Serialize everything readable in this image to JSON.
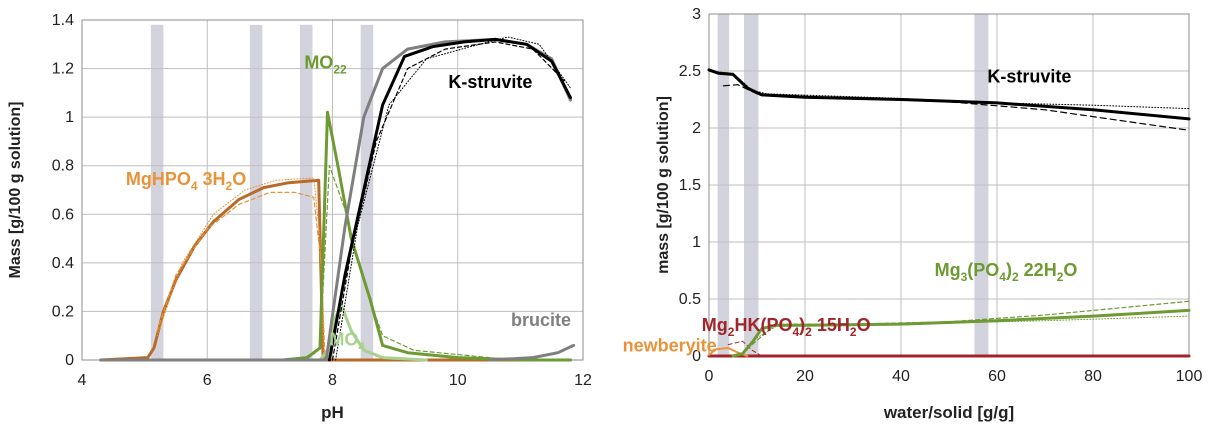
{
  "colors": {
    "black": "#000000",
    "gray": "#7f7f7f",
    "green": "#6e9a34",
    "lightgreen": "#a9d18e",
    "brown": "#b76a29",
    "orange": "#e8933a",
    "darkred": "#a0252a",
    "band": "#d3d3dd",
    "grid": "#bfbfbf"
  },
  "chart_data": [
    {
      "type": "line",
      "xlabel": "pH",
      "ylabel": "Mass [g/100 g solution]",
      "xlim": [
        4,
        12
      ],
      "ylim": [
        0,
        1.4
      ],
      "xticks": [
        "4",
        "6",
        "8",
        "10",
        "12"
      ],
      "yticks": [
        "0",
        "0.2",
        "0.4",
        "0.6",
        "0.8",
        "1",
        "1.2",
        "1.4"
      ],
      "grid": true,
      "bands": [
        {
          "x0": 5.1,
          "x1": 5.3,
          "ytop": 1.38
        },
        {
          "x0": 6.68,
          "x1": 6.88,
          "ytop": 1.38
        },
        {
          "x0": 7.48,
          "x1": 7.68,
          "ytop": 1.38
        },
        {
          "x0": 8.45,
          "x1": 8.65,
          "ytop": 1.38
        }
      ],
      "labels": [
        {
          "text": "MgHPO4 3H2O",
          "color": "orange",
          "x": 4.7,
          "y": 0.72
        },
        {
          "text": "MO22",
          "color": "green",
          "x": 7.55,
          "y": 1.2
        },
        {
          "text": "K-struvite",
          "color": "black",
          "x": 9.85,
          "y": 1.12
        },
        {
          "text": "brucite",
          "color": "gray",
          "x": 10.85,
          "y": 0.14
        },
        {
          "text": "MO4",
          "color": "lightgreen",
          "x": 7.95,
          "y": 0.06
        }
      ],
      "series": [
        {
          "color": "brown",
          "width": 3,
          "values": [
            [
              4.3,
              0
            ],
            [
              5.05,
              0.01
            ],
            [
              5.15,
              0.05
            ],
            [
              5.3,
              0.2
            ],
            [
              5.5,
              0.33
            ],
            [
              5.8,
              0.47
            ],
            [
              6.1,
              0.57
            ],
            [
              6.5,
              0.66
            ],
            [
              6.9,
              0.71
            ],
            [
              7.3,
              0.73
            ],
            [
              7.78,
              0.74
            ],
            [
              7.85,
              0.0
            ],
            [
              8.2,
              0
            ],
            [
              11.8,
              0
            ]
          ]
        },
        {
          "color": "orange",
          "width": 1.2,
          "dash": "4,3",
          "values": [
            [
              5.2,
              0.12
            ],
            [
              5.5,
              0.35
            ],
            [
              6,
              0.54
            ],
            [
              6.5,
              0.64
            ],
            [
              7,
              0.69
            ],
            [
              7.4,
              0.69
            ],
            [
              7.7,
              0.67
            ],
            [
              7.82,
              0.4
            ],
            [
              7.88,
              0
            ]
          ]
        },
        {
          "color": "orange",
          "width": 1,
          "dash": "1,2",
          "values": [
            [
              5.2,
              0.1
            ],
            [
              5.6,
              0.4
            ],
            [
              6.1,
              0.6
            ],
            [
              6.6,
              0.7
            ],
            [
              7.1,
              0.74
            ],
            [
              7.7,
              0.75
            ],
            [
              7.8,
              0.5
            ],
            [
              7.86,
              0
            ]
          ]
        },
        {
          "color": "lightgreen",
          "width": 3,
          "values": [
            [
              7.8,
              0
            ],
            [
              7.95,
              0.05
            ],
            [
              8.05,
              0.18
            ],
            [
              8.15,
              0.22
            ],
            [
              8.3,
              0.12
            ],
            [
              8.5,
              0.04
            ],
            [
              8.8,
              0.01
            ],
            [
              9.5,
              0
            ]
          ]
        },
        {
          "color": "green",
          "width": 3,
          "values": [
            [
              7.2,
              0
            ],
            [
              7.6,
              0.01
            ],
            [
              7.8,
              0.05
            ],
            [
              7.92,
              1.02
            ],
            [
              8.1,
              0.78
            ],
            [
              8.3,
              0.5
            ],
            [
              8.6,
              0.25
            ],
            [
              8.8,
              0.06
            ],
            [
              9.2,
              0.03
            ],
            [
              10,
              0.01
            ],
            [
              11,
              0.0
            ],
            [
              11.8,
              0
            ]
          ]
        },
        {
          "color": "green",
          "width": 1.2,
          "dash": "4,3",
          "values": [
            [
              7.5,
              0
            ],
            [
              7.8,
              0.05
            ],
            [
              7.95,
              0.8
            ],
            [
              8.2,
              0.62
            ],
            [
              8.5,
              0.32
            ],
            [
              8.8,
              0.1
            ],
            [
              9.3,
              0.04
            ],
            [
              10.5,
              0.01
            ]
          ]
        },
        {
          "color": "gray",
          "width": 3,
          "values": [
            [
              4.3,
              0
            ],
            [
              7.9,
              0
            ],
            [
              8.2,
              0.55
            ],
            [
              8.5,
              1.0
            ],
            [
              8.8,
              1.2
            ],
            [
              9.2,
              1.28
            ],
            [
              9.8,
              1.31
            ],
            [
              10.6,
              1.32
            ],
            [
              11.1,
              1.3
            ],
            [
              11.5,
              1.24
            ],
            [
              11.8,
              1.07
            ]
          ]
        },
        {
          "color": "gray",
          "width": 3,
          "values": [
            [
              10.5,
              0
            ],
            [
              11.2,
              0.01
            ],
            [
              11.6,
              0.03
            ],
            [
              11.85,
              0.06
            ]
          ]
        },
        {
          "color": "black",
          "width": 3,
          "values": [
            [
              7.95,
              0
            ],
            [
              8.2,
              0.35
            ],
            [
              8.5,
              0.7
            ],
            [
              8.8,
              1.05
            ],
            [
              9.15,
              1.25
            ],
            [
              9.6,
              1.29
            ],
            [
              10.1,
              1.31
            ],
            [
              10.6,
              1.32
            ],
            [
              11.1,
              1.3
            ],
            [
              11.5,
              1.23
            ],
            [
              11.8,
              1.08
            ]
          ]
        },
        {
          "color": "black",
          "width": 1.2,
          "dash": "4,3",
          "values": [
            [
              8.0,
              0
            ],
            [
              8.3,
              0.45
            ],
            [
              8.7,
              0.9
            ],
            [
              9.2,
              1.2
            ],
            [
              9.8,
              1.28
            ],
            [
              10.6,
              1.31
            ],
            [
              11.2,
              1.28
            ],
            [
              11.7,
              1.15
            ]
          ]
        },
        {
          "color": "black",
          "width": 1,
          "dash": "1,2",
          "values": [
            [
              8.05,
              0
            ],
            [
              8.4,
              0.55
            ],
            [
              8.9,
              1.05
            ],
            [
              9.5,
              1.24
            ],
            [
              10.2,
              1.29
            ],
            [
              10.8,
              1.33
            ],
            [
              11.3,
              1.3
            ],
            [
              11.8,
              1.12
            ]
          ]
        }
      ]
    },
    {
      "type": "line",
      "xlabel": "water/solid [g/g]",
      "ylabel": "mass [g/100 g solution]",
      "xlim": [
        0,
        100
      ],
      "ylim": [
        0,
        3
      ],
      "xticks": [
        "0",
        "20",
        "40",
        "60",
        "80",
        "100"
      ],
      "yticks": [
        "0",
        "0.5",
        "1",
        "1.5",
        "2",
        "2.5",
        "3"
      ],
      "grid": true,
      "bands": [
        {
          "x0": 1.8,
          "x1": 4.2,
          "ytop": 3.0
        },
        {
          "x0": 7.3,
          "x1": 10.3,
          "ytop": 3.0
        },
        {
          "x0": 55.3,
          "x1": 58.2,
          "ytop": 3.0
        }
      ],
      "labels": [
        {
          "text": "K-struvite",
          "color": "black",
          "x": 58,
          "y": 2.4
        },
        {
          "text": "Mg3(PO4)2 22H2O",
          "color": "green",
          "x": 47,
          "y": 0.7
        },
        {
          "text": "Mg2HK(PO4)2 15H2O",
          "color": "darkred",
          "x": -1.5,
          "y": 0.22
        },
        {
          "text": "newberyite",
          "color": "orange",
          "x": -18,
          "y": 0.04
        }
      ],
      "series": [
        {
          "color": "darkred",
          "width": 3,
          "values": [
            [
              0,
              0
            ],
            [
              100,
              0
            ]
          ]
        },
        {
          "color": "orange",
          "width": 2,
          "values": [
            [
              0,
              0.01
            ],
            [
              1.5,
              0.06
            ],
            [
              4,
              0.07
            ],
            [
              6,
              0.03
            ],
            [
              8,
              0
            ]
          ]
        },
        {
          "color": "darkred",
          "width": 1,
          "dash": "4,3",
          "values": [
            [
              4,
              0.1
            ],
            [
              7,
              0.13
            ],
            [
              9,
              0.05
            ],
            [
              11,
              0.0
            ]
          ]
        },
        {
          "color": "green",
          "width": 3,
          "values": [
            [
              5,
              0
            ],
            [
              7,
              0.02
            ],
            [
              9,
              0.12
            ],
            [
              11,
              0.24
            ],
            [
              14,
              0.27
            ],
            [
              20,
              0.27
            ],
            [
              40,
              0.28
            ],
            [
              60,
              0.31
            ],
            [
              80,
              0.35
            ],
            [
              100,
              0.4
            ]
          ]
        },
        {
          "color": "green",
          "width": 1.2,
          "dash": "4,3",
          "values": [
            [
              9,
              0.1
            ],
            [
              14,
              0.28
            ],
            [
              30,
              0.28
            ],
            [
              50,
              0.3
            ],
            [
              70,
              0.36
            ],
            [
              100,
              0.48
            ]
          ]
        },
        {
          "color": "green",
          "width": 1,
          "dash": "1,2",
          "values": [
            [
              10,
              0.16
            ],
            [
              14,
              0.26
            ],
            [
              40,
              0.28
            ],
            [
              70,
              0.31
            ],
            [
              100,
              0.35
            ]
          ]
        },
        {
          "color": "black",
          "width": 3,
          "values": [
            [
              0,
              2.51
            ],
            [
              2,
              2.48
            ],
            [
              5,
              2.47
            ],
            [
              8,
              2.35
            ],
            [
              11,
              2.29
            ],
            [
              20,
              2.27
            ],
            [
              40,
              2.25
            ],
            [
              60,
              2.22
            ],
            [
              80,
              2.16
            ],
            [
              100,
              2.08
            ]
          ]
        },
        {
          "color": "black",
          "width": 1.2,
          "dash": "6,4",
          "values": [
            [
              3,
              2.37
            ],
            [
              6,
              2.38
            ],
            [
              10,
              2.3
            ],
            [
              30,
              2.26
            ],
            [
              50,
              2.23
            ],
            [
              70,
              2.16
            ],
            [
              100,
              1.98
            ]
          ]
        },
        {
          "color": "black",
          "width": 1,
          "dash": "1,2",
          "values": [
            [
              0,
              2.5
            ],
            [
              5,
              2.48
            ],
            [
              9,
              2.33
            ],
            [
              12,
              2.3
            ],
            [
              40,
              2.26
            ],
            [
              60,
              2.22
            ],
            [
              80,
              2.2
            ],
            [
              100,
              2.17
            ]
          ]
        }
      ]
    }
  ]
}
